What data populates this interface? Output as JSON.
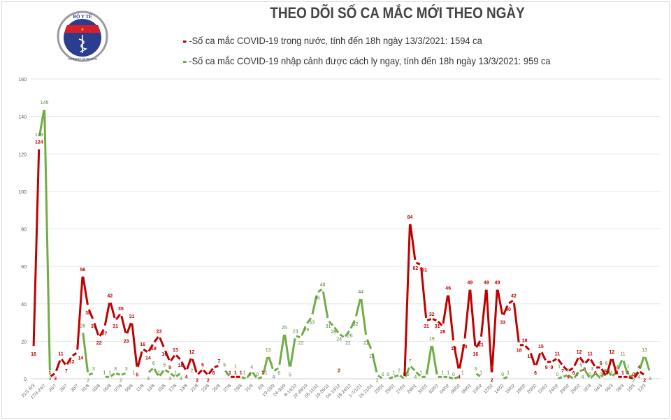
{
  "header": {
    "logo_text_top": "BỘ Y TẾ",
    "logo_text_bottom": "MINISTRY OF HEALTH",
    "title": "THEO DÕI SỐ CA MẮC MỚI THEO NGÀY"
  },
  "chart_data": {
    "type": "line",
    "title": "THEO DÕI SỐ CA MẮC MỚI THEO NGÀY",
    "xlabel": "",
    "ylabel": "",
    "ylim": [
      0,
      160
    ],
    "yticks": [
      0,
      20,
      40,
      60,
      80,
      100,
      120,
      140,
      160
    ],
    "grid": true,
    "legend_placement": "top",
    "colors": {
      "domestic": "#c00000",
      "imported": "#70ad47",
      "domestic_label": "#c00000",
      "imported_label": "#548235"
    },
    "series": [
      {
        "name": "-Số ca mắc COVID-19 trong nước, tính đến 18h ngày 13/3/2021: 1594 ca",
        "key": "r"
      },
      {
        "name": "-Số ca mắc COVID-19 nhập cảnh được cách ly ngay, tính đến 18h ngày 13/3/2021: 959 ca",
        "key": "g"
      }
    ],
    "points": [
      {
        "l": "21/1-6/3",
        "r": 16,
        "g": null
      },
      {
        "l": "",
        "r": 124,
        "g": 128
      },
      {
        "l": "17/4-24/7",
        "r": null,
        "g": 145
      },
      {
        "l": "",
        "r": 1,
        "g": 3
      },
      {
        "l": "26/7",
        "r": 3,
        "g": null
      },
      {
        "l": "",
        "r": 11,
        "g": null
      },
      {
        "l": "28/7",
        "r": 7,
        "g": null
      },
      {
        "l": "",
        "r": 12,
        "g": null
      },
      {
        "l": "30/7",
        "r": 14,
        "g": null
      },
      {
        "l": "",
        "r": 56,
        "g": 26
      },
      {
        "l": "01/8",
        "r": 38,
        "g": 2
      },
      {
        "l": "",
        "r": 31,
        "g": 3
      },
      {
        "l": "03/8",
        "r": 22,
        "g": null
      },
      {
        "l": "",
        "r": 27,
        "g": 1
      },
      {
        "l": "05/8",
        "r": 42,
        "g": 1
      },
      {
        "l": "",
        "r": 31,
        "g": 3
      },
      {
        "l": "07/8",
        "r": 35,
        "g": 2
      },
      {
        "l": "",
        "r": 23,
        "g": 3
      },
      {
        "l": "09/8",
        "r": 31,
        "g": null
      },
      {
        "l": "",
        "r": 5,
        "g": 1
      },
      {
        "l": "11/8",
        "r": 16,
        "g": null
      },
      {
        "l": "",
        "r": 14,
        "g": 3
      },
      {
        "l": "13/8",
        "r": 19,
        "g": 6
      },
      {
        "l": "",
        "r": 23,
        "g": 1
      },
      {
        "l": "15/8",
        "r": 16,
        "g": 5
      },
      {
        "l": "",
        "r": 9,
        "g": 3
      },
      {
        "l": "17/8",
        "r": 13,
        "g": 1
      },
      {
        "l": "",
        "r": 10,
        "g": 3
      },
      {
        "l": "19/8",
        "r": 4,
        "g": null
      },
      {
        "l": "",
        "r": 12,
        "g": 2
      },
      {
        "l": "21/8",
        "r": 2,
        "g": null
      },
      {
        "l": "",
        "r": 5,
        "g": null
      },
      {
        "l": "23/8",
        "r": 2,
        "g": null
      },
      {
        "l": "",
        "r": 6,
        "g": null
      },
      {
        "l": "25/8",
        "r": 7,
        "g": null
      },
      {
        "l": "",
        "r": null,
        "g": 5
      },
      {
        "l": "27/8",
        "r": 1,
        "g": 1
      },
      {
        "l": "",
        "r": 1,
        "g": 1
      },
      {
        "l": "29/8",
        "r": 1,
        "g": 1
      },
      {
        "l": "",
        "r": null,
        "g": 0
      },
      {
        "l": "31/8",
        "r": null,
        "g": 4
      },
      {
        "l": "",
        "r": null,
        "g": 0
      },
      {
        "l": "2/9",
        "r": 1,
        "g": 1
      },
      {
        "l": "",
        "r": null,
        "g": 13
      },
      {
        "l": "10-16/9",
        "r": null,
        "g": 4
      },
      {
        "l": "",
        "r": null,
        "g": 6
      },
      {
        "l": "24-30/9",
        "r": null,
        "g": 25
      },
      {
        "l": "",
        "r": null,
        "g": 5
      },
      {
        "l": "8-14/10",
        "r": null,
        "g": 23
      },
      {
        "l": "",
        "r": null,
        "g": 22
      },
      {
        "l": "22-28/10",
        "r": null,
        "g": 29
      },
      {
        "l": "",
        "r": null,
        "g": 33
      },
      {
        "l": "05-11/11",
        "r": null,
        "g": 46
      },
      {
        "l": "",
        "r": null,
        "g": 48
      },
      {
        "l": "19-26/11",
        "r": null,
        "g": 31
      },
      {
        "l": "",
        "r": null,
        "g": 28
      },
      {
        "l": "04-10/12",
        "r": 2,
        "g": 24
      },
      {
        "l": "",
        "r": null,
        "g": 22
      },
      {
        "l": "18-24/12",
        "r": null,
        "g": 26
      },
      {
        "l": "",
        "r": null,
        "g": 32
      },
      {
        "l": "1-7/1/21",
        "r": null,
        "g": 44
      },
      {
        "l": "",
        "r": null,
        "g": 22
      },
      {
        "l": "15-21/01",
        "r": null,
        "g": 15
      },
      {
        "l": "",
        "r": null,
        "g": 2
      },
      {
        "l": "23/01",
        "r": null,
        "g": 0
      },
      {
        "l": "",
        "r": null,
        "g": 0
      },
      {
        "l": "25/01",
        "r": null,
        "g": 1
      },
      {
        "l": "",
        "r": null,
        "g": 2
      },
      {
        "l": "27/01",
        "r": 0,
        "g": 0
      },
      {
        "l": "",
        "r": 84,
        "g": 7
      },
      {
        "l": "29/01",
        "r": 62,
        "g": 4
      },
      {
        "l": "",
        "r": 61,
        "g": 1
      },
      {
        "l": "31/01",
        "r": 31,
        "g": 1
      },
      {
        "l": "",
        "r": 32,
        "g": 19
      },
      {
        "l": "02/02",
        "r": 31,
        "g": 1
      },
      {
        "l": "",
        "r": 28,
        "g": 1
      },
      {
        "l": "04/02",
        "r": 46,
        "g": 1
      },
      {
        "l": "",
        "r": 19,
        "g": 0
      },
      {
        "l": "06/02",
        "r": 4,
        "g": 1
      },
      {
        "l": "",
        "r": 20,
        "g": null
      },
      {
        "l": "08/02",
        "r": 49,
        "g": null
      },
      {
        "l": "",
        "r": 16,
        "g": 3
      },
      {
        "l": "10/02",
        "r": 21,
        "g": 1
      },
      {
        "l": "",
        "r": 49,
        "g": null
      },
      {
        "l": "12/02",
        "r": 2,
        "g": 4
      },
      {
        "l": "",
        "r": 49,
        "g": null
      },
      {
        "l": "14/02",
        "r": 33,
        "g": 0
      },
      {
        "l": "",
        "r": 40,
        "g": 1
      },
      {
        "l": "16/02",
        "r": 42,
        "g": null
      },
      {
        "l": "",
        "r": 18,
        "g": null
      },
      {
        "l": "18/02",
        "r": 18,
        "g": null
      },
      {
        "l": "",
        "r": 15,
        "g": null
      },
      {
        "l": "20/02",
        "r": 6,
        "g": null
      },
      {
        "l": "",
        "r": 15,
        "g": null
      },
      {
        "l": "22/02",
        "r": 9,
        "g": null
      },
      {
        "l": "",
        "r": 9,
        "g": null
      },
      {
        "l": "24/02",
        "r": 11,
        "g": 0
      },
      {
        "l": "",
        "r": 7,
        "g": 1
      },
      {
        "l": "26/02",
        "r": 4,
        "g": 2
      },
      {
        "l": "",
        "r": 6,
        "g": 0
      },
      {
        "l": "28/02",
        "r": 12,
        "g": 4
      },
      {
        "l": "",
        "r": 8,
        "g": 5
      },
      {
        "l": "02/3",
        "r": 11,
        "g": 0
      },
      {
        "l": "",
        "r": 6,
        "g": 3
      },
      {
        "l": "04/3",
        "r": 6,
        "g": 0
      },
      {
        "l": "",
        "r": 1,
        "g": 6
      },
      {
        "l": "06/3",
        "r": 12,
        "g": 1
      },
      {
        "l": "",
        "r": 1,
        "g": 4
      },
      {
        "l": "08/3",
        "r": 1,
        "g": 11
      },
      {
        "l": "",
        "r": 1,
        "g": 1
      },
      {
        "l": "10/3",
        "r": 0,
        "g": 2
      },
      {
        "l": "",
        "r": 4,
        "g": 4
      },
      {
        "l": "12/3",
        "r": 2,
        "g": 13
      },
      {
        "l": "",
        "r": null,
        "g": 3
      }
    ]
  }
}
